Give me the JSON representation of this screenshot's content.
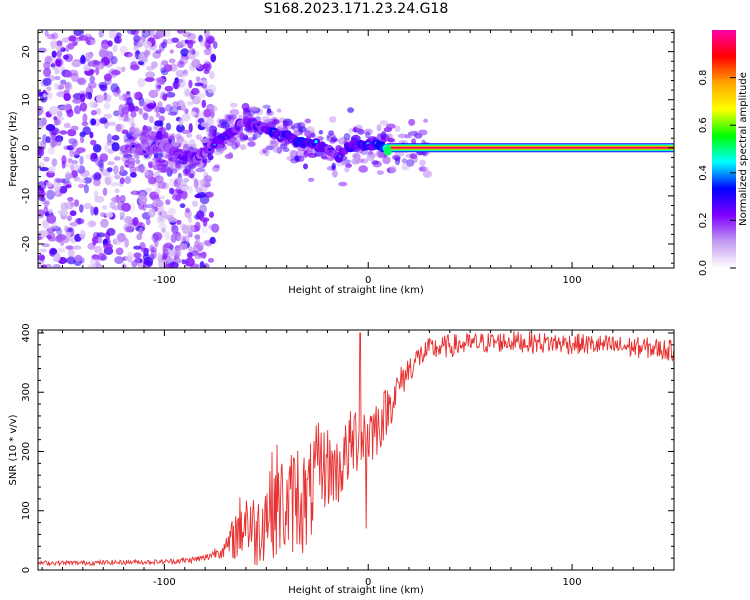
{
  "title": "S168.2023.171.23.24.G18",
  "colors": {
    "snr_line": "#e83030",
    "scatter": "#8a2be2",
    "axis": "#000000"
  },
  "chart_data": [
    {
      "type": "heatmap",
      "title": "",
      "xlabel": "Height of straight line (km)",
      "ylabel": "Frequency (Hz)",
      "xlim": [
        -162,
        150
      ],
      "ylim": [
        -25,
        24.5
      ],
      "xticks": [
        -100,
        0,
        100
      ],
      "yticks": [
        -20,
        -10,
        0,
        10,
        20
      ],
      "colorbar": {
        "label": "Normalized spectral amplitude",
        "ticks": [
          "0.0",
          "0.2",
          "0.4",
          "0.6",
          "0.8"
        ],
        "colors": [
          "#ffffff",
          "#c39bf2",
          "#7f00ff",
          "#0000ff",
          "#00ffff",
          "#00ff00",
          "#ffff00",
          "#ffa500",
          "#ff0000",
          "#ff00aa"
        ],
        "range": [
          0,
          1
        ]
      },
      "ridge": {
        "x": [
          -120,
          -110,
          -100,
          -95,
          -90,
          -85,
          -80,
          -75,
          -70,
          -65,
          -60,
          -55,
          -50,
          -45,
          -40,
          -35,
          -30,
          -25,
          -20,
          -15,
          -10,
          -5,
          0,
          5,
          10,
          150
        ],
        "freq": [
          0,
          -0.5,
          0.5,
          -1,
          -1.5,
          -2,
          -1,
          1,
          2.5,
          4,
          5.5,
          4.5,
          4,
          2.8,
          2.5,
          1.5,
          1.2,
          0.5,
          -0.3,
          -2,
          0,
          0.8,
          0.5,
          0.5,
          0,
          0
        ],
        "amplitude": [
          0.3,
          0.3,
          0.3,
          0.35,
          0.4,
          0.4,
          0.35,
          0.4,
          0.45,
          0.4,
          0.35,
          0.45,
          0.4,
          0.55,
          0.5,
          0.5,
          0.55,
          0.5,
          0.4,
          0.4,
          0.45,
          0.45,
          0.5,
          0.6,
          1.0,
          1.0
        ]
      },
      "noise_region": [
        -162,
        -75
      ]
    },
    {
      "type": "line",
      "title": "",
      "xlabel": "Height of straight line (km)",
      "ylabel": "SNR (10 * v/v)",
      "xlim": [
        -162,
        150
      ],
      "ylim": [
        0,
        405
      ],
      "xticks": [
        -100,
        0,
        100
      ],
      "yticks": [
        0,
        100,
        200,
        300,
        400
      ],
      "series": [
        {
          "x": [
            -162,
            -140,
            -120,
            -100,
            -90,
            -80,
            -75,
            -70,
            -65,
            -60,
            -55,
            -50,
            -45,
            -40,
            -35,
            -30,
            -25,
            -20,
            -15,
            -10,
            -5,
            0,
            5,
            10,
            15,
            20,
            25,
            30,
            40,
            50,
            60,
            70,
            80,
            90,
            100,
            110,
            120,
            130,
            140,
            150
          ],
          "values": [
            12,
            12,
            13,
            14,
            16,
            20,
            30,
            35,
            60,
            90,
            60,
            100,
            120,
            100,
            130,
            110,
            170,
            175,
            165,
            200,
            230,
            230,
            245,
            275,
            310,
            340,
            360,
            372,
            378,
            382,
            384,
            386,
            384,
            383,
            382,
            380,
            378,
            376,
            374,
            370
          ],
          "spread": [
            4,
            4,
            4,
            4,
            5,
            6,
            10,
            15,
            45,
            70,
            60,
            80,
            100,
            80,
            100,
            90,
            80,
            70,
            60,
            60,
            70,
            60,
            50,
            40,
            30,
            25,
            22,
            20,
            20,
            18,
            18,
            18,
            18,
            18,
            18,
            18,
            18,
            18,
            18,
            18
          ]
        }
      ],
      "spikes": [
        {
          "x": -4,
          "value": 400
        },
        {
          "x": -1,
          "value": 70
        }
      ]
    }
  ]
}
